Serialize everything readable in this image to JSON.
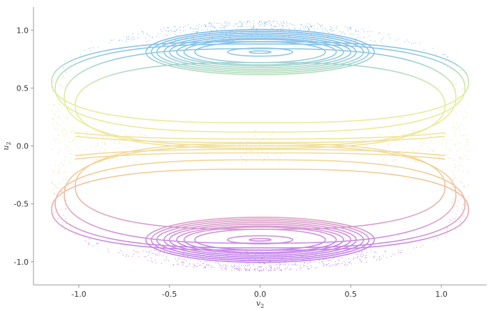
{
  "chart_data": {
    "type": "scatter",
    "xlabel": {
      "base": "v",
      "sub": "2"
    },
    "ylabel": {
      "base": "u",
      "sub": "2"
    },
    "xlim": [
      -1.25,
      1.25
    ],
    "ylim": [
      -1.2,
      1.2
    ],
    "xticks": [
      -1.0,
      -0.5,
      0.0,
      0.5,
      1.0
    ],
    "xtick_labels": [
      "-1.0",
      "-0.5",
      "0.0",
      "0.5",
      "1.0"
    ],
    "yticks": [
      -1.0,
      -0.5,
      0.0,
      0.5,
      1.0
    ],
    "ytick_labels": [
      "-1.0",
      "-0.5",
      "0.0",
      "0.5",
      "1.0"
    ],
    "grid": false,
    "colormap": {
      "description": "vertical rainbow by u2",
      "stops": [
        {
          "u": 1.05,
          "color": "#78b8ec"
        },
        {
          "u": 0.8,
          "color": "#8cc6e8"
        },
        {
          "u": 0.6,
          "color": "#bde3b2"
        },
        {
          "u": 0.4,
          "color": "#e6ee98"
        },
        {
          "u": 0.1,
          "color": "#f0e79a"
        },
        {
          "u": -0.2,
          "color": "#f3cf96"
        },
        {
          "u": -0.45,
          "color": "#efb79f"
        },
        {
          "u": -0.65,
          "color": "#dd9fc8"
        },
        {
          "u": -0.85,
          "color": "#c887e6"
        },
        {
          "u": -1.05,
          "color": "#bb7af0"
        }
      ]
    },
    "series": [
      {
        "kind": "invariant_curves_upper",
        "center": [
          0.0,
          0.81
        ],
        "curves": [
          {
            "half_width": 0.06,
            "half_height": 0.01
          },
          {
            "half_width": 0.18,
            "half_height": 0.035
          },
          {
            "half_width": 0.36,
            "half_height": 0.09
          },
          {
            "half_width": 0.42,
            "half_height": 0.11
          },
          {
            "half_width": 0.46,
            "half_height": 0.12
          },
          {
            "half_width": 0.5,
            "half_height": 0.135
          },
          {
            "half_width": 0.53,
            "half_height": 0.15
          },
          {
            "half_width": 0.57,
            "half_height": 0.165
          },
          {
            "half_width": 0.6,
            "half_height": 0.18
          },
          {
            "half_width": 0.63,
            "half_height": 0.195
          }
        ]
      },
      {
        "kind": "invariant_curves_lower",
        "center": [
          0.0,
          -0.81
        ],
        "curves": [
          {
            "half_width": 0.06,
            "half_height": 0.01
          },
          {
            "half_width": 0.18,
            "half_height": 0.035
          },
          {
            "half_width": 0.36,
            "half_height": 0.09
          },
          {
            "half_width": 0.42,
            "half_height": 0.11
          },
          {
            "half_width": 0.46,
            "half_height": 0.12
          },
          {
            "half_width": 0.5,
            "half_height": 0.135
          },
          {
            "half_width": 0.53,
            "half_height": 0.15
          },
          {
            "half_width": 0.57,
            "half_height": 0.165
          },
          {
            "half_width": 0.6,
            "half_height": 0.18
          },
          {
            "half_width": 0.63,
            "half_height": 0.195
          }
        ]
      },
      {
        "kind": "outer_bands",
        "bands": [
          {
            "center_u": 0.55,
            "half_width": 1.15,
            "half_height": 0.35
          },
          {
            "center_u": 0.5,
            "half_width": 1.13,
            "half_height": 0.38
          },
          {
            "center_u": 0.42,
            "half_width": 1.08,
            "half_height": 0.42
          },
          {
            "center_u": 0.35,
            "half_width": 1.02,
            "half_height": 0.37
          },
          {
            "center_u": -0.55,
            "half_width": 1.15,
            "half_height": 0.35
          },
          {
            "center_u": -0.5,
            "half_width": 1.13,
            "half_height": 0.38
          },
          {
            "center_u": -0.42,
            "half_width": 1.08,
            "half_height": 0.42
          },
          {
            "center_u": -0.35,
            "half_width": 1.02,
            "half_height": 0.37
          }
        ]
      },
      {
        "kind": "chaotic_sea",
        "u_range": [
          -1.08,
          1.08
        ],
        "v_half_width_at_u0": 1.15
      }
    ]
  }
}
